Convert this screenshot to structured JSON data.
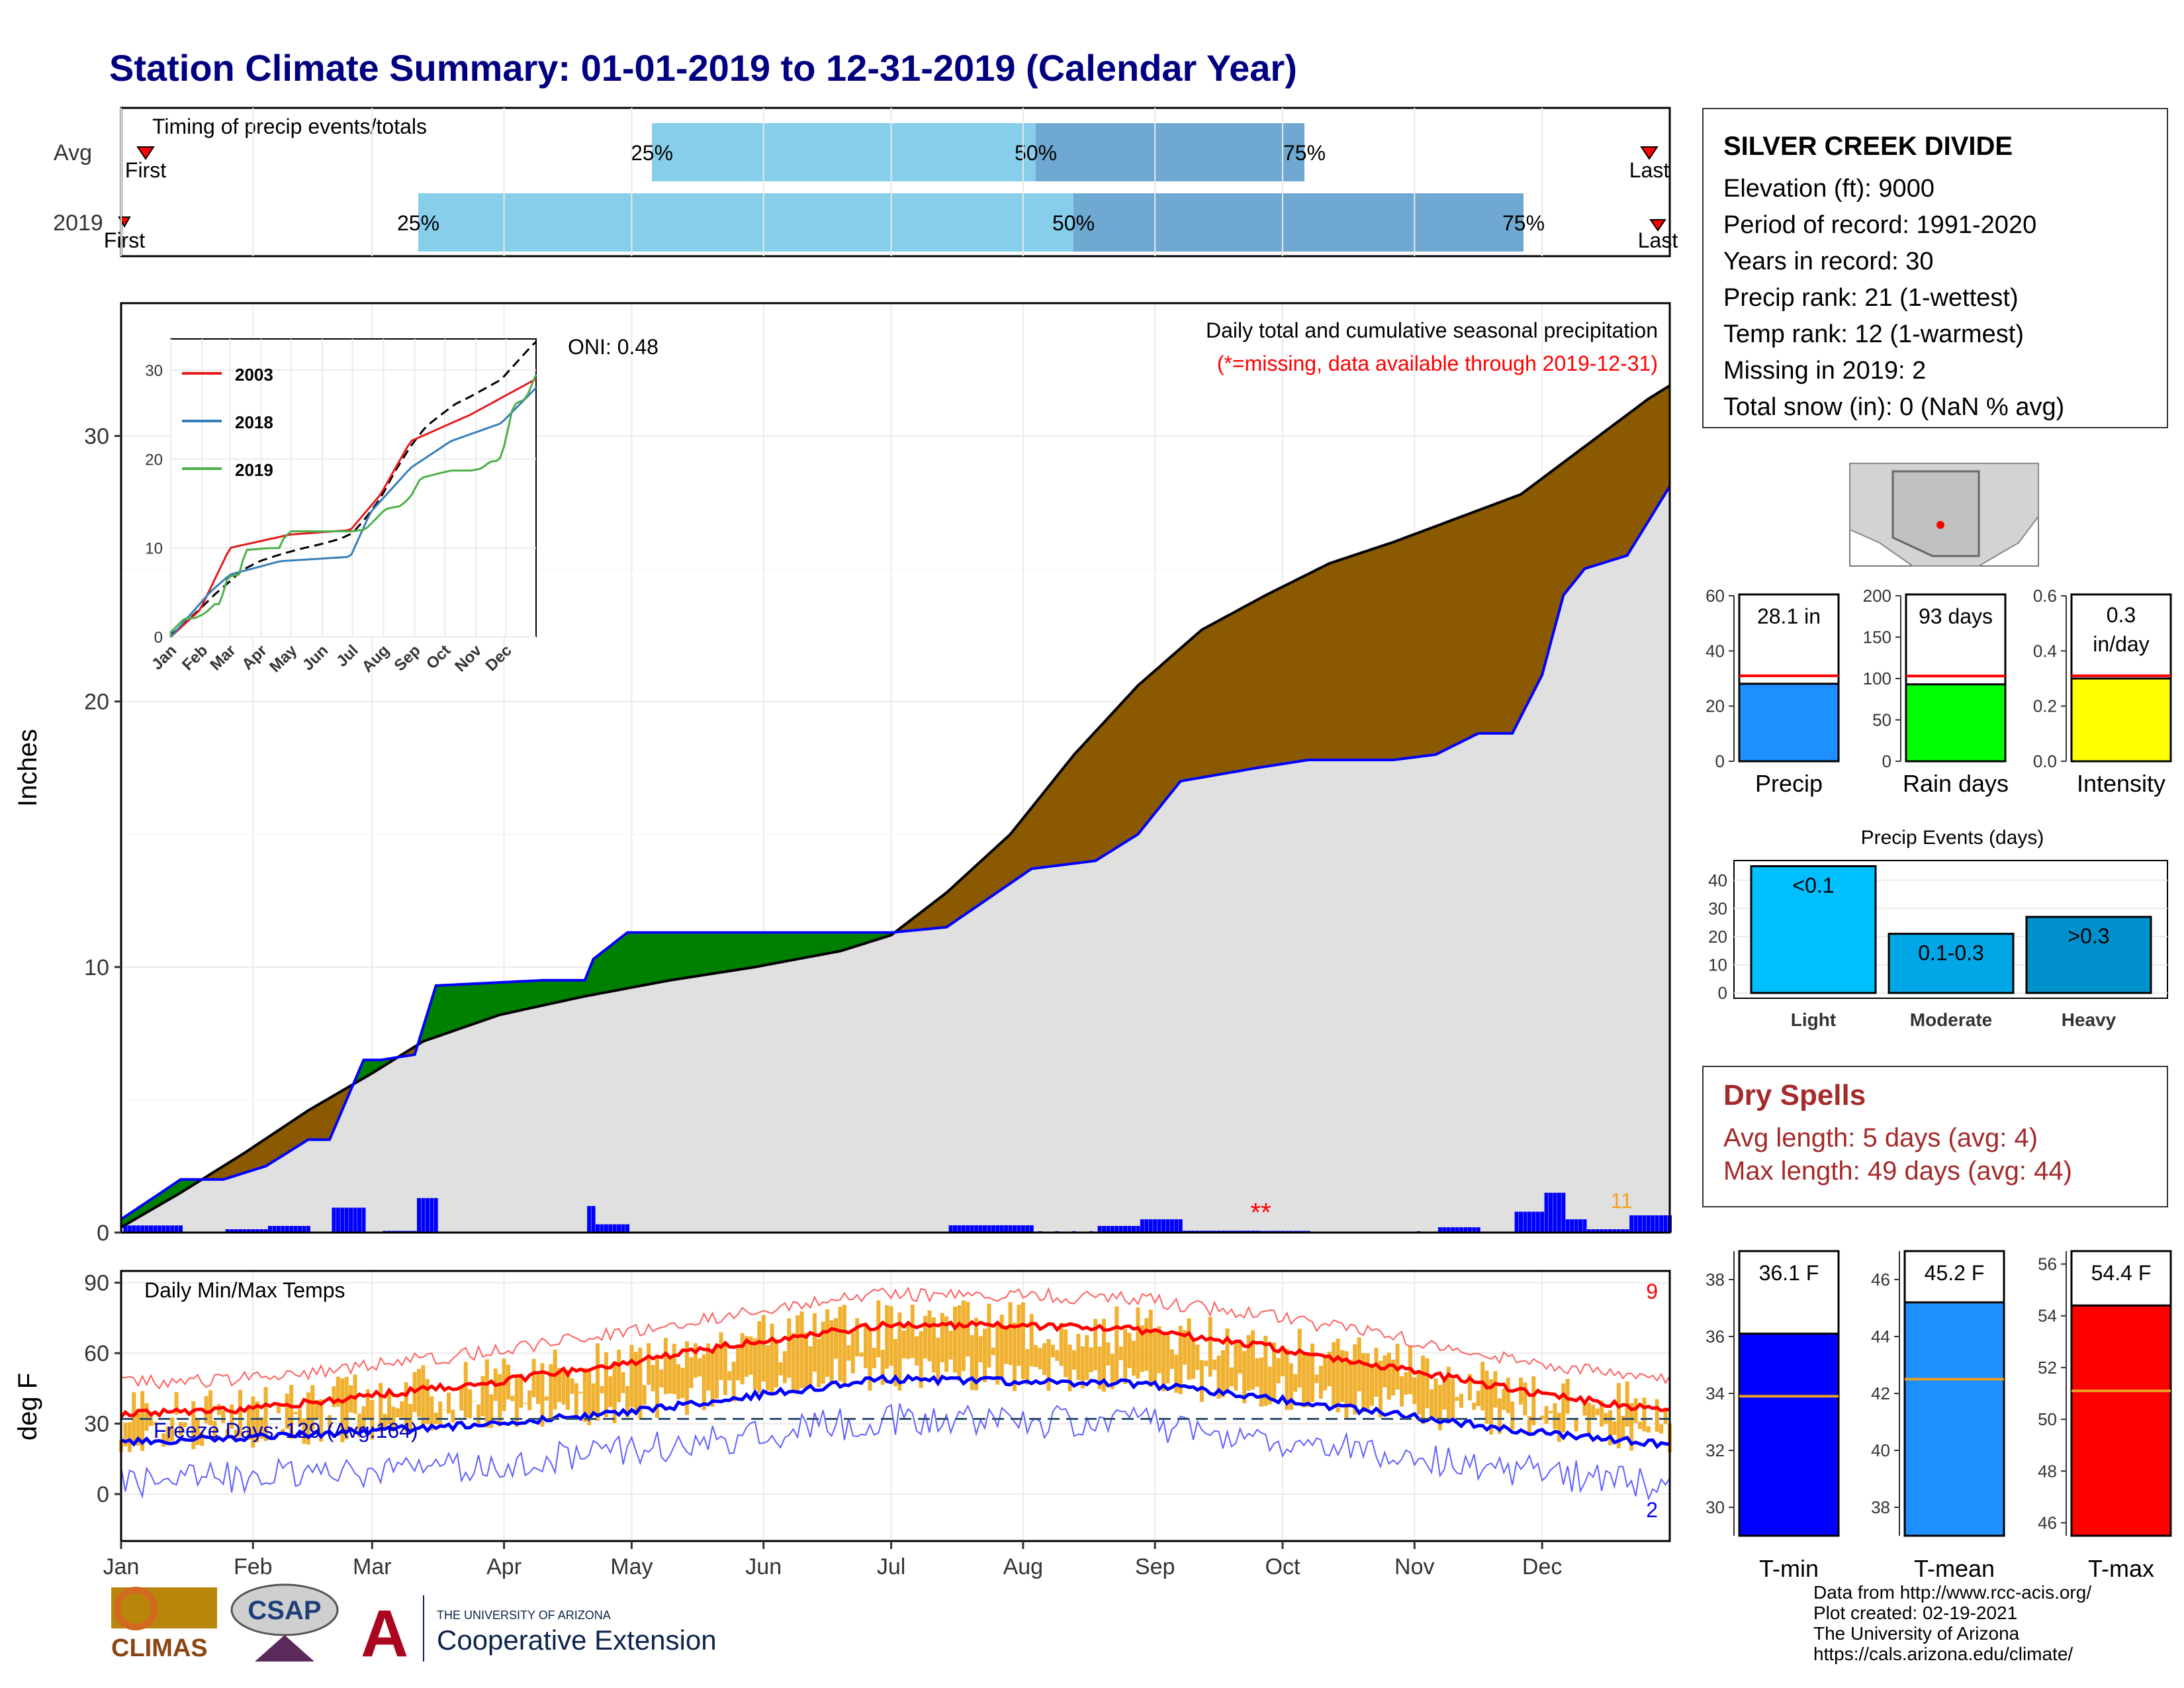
{
  "title": "Station Climate Summary: 01-01-2019 to 12-31-2019 (Calendar Year)",
  "colors": {
    "title": "#000080",
    "light_blue": "#87ceeb",
    "mid_blue": "#6fa8d0",
    "brown": "#8b5a00",
    "green": "#008000",
    "bar_blue": "#0000ff",
    "grey_fill": "#e0e0e0",
    "orange": "#f0b030",
    "red": "#ff0000",
    "dark_red": "#a52a2a"
  },
  "timing_panel": {
    "label": "Timing of precip events/totals",
    "rows": [
      {
        "name": "Avg",
        "first_label": "First",
        "last_label": "Last",
        "p25": "25%",
        "p50": "50%",
        "p75": "75%"
      },
      {
        "name": "2019",
        "first_label": "First",
        "last_label": "Last",
        "p25": "25%",
        "p50": "50%",
        "p75": "75%"
      }
    ]
  },
  "precip_panel": {
    "ylabel": "Inches",
    "yticks": [
      "0",
      "10",
      "20",
      "30"
    ],
    "title_line1": "Daily total and cumulative seasonal precipitation",
    "title_line2": "(*=missing, data available through 2019-12-31)",
    "oni": "ONI: 0.48",
    "missing_marker": "**",
    "corner_count": "11"
  },
  "inset": {
    "legend": [
      "2003",
      "2018",
      "2019"
    ],
    "legend_colors": [
      "#e41a1c",
      "#377eb8",
      "#4daf4a"
    ],
    "yticks": [
      "0",
      "10",
      "20",
      "30"
    ],
    "months": [
      "Jan",
      "Feb",
      "Mar",
      "Apr",
      "May",
      "Jun",
      "Jul",
      "Aug",
      "Sep",
      "Oct",
      "Nov",
      "Dec"
    ]
  },
  "temp_panel": {
    "ylabel": "deg F",
    "label": "Daily Min/Max Temps",
    "yticks": [
      "0",
      "30",
      "60",
      "90"
    ],
    "freeze": "Freeze Days: 129 (Avg:164)",
    "count_top": "9",
    "count_bottom": "2"
  },
  "months": [
    "Jan",
    "Feb",
    "Mar",
    "Apr",
    "May",
    "Jun",
    "Jul",
    "Aug",
    "Sep",
    "Oct",
    "Nov",
    "Dec"
  ],
  "station": {
    "name": "SILVER CREEK DIVIDE",
    "lines": [
      "Elevation (ft): 9000",
      "Period of record: 1991-2020",
      "Years in record: 30",
      "Precip rank: 21 (1-wettest)",
      "Temp rank: 12 (1-warmest)",
      "Missing in 2019: 2",
      "Total snow (in): 0 (NaN % avg)"
    ]
  },
  "summary_bars": [
    {
      "label": "Precip",
      "value_text": "28.1 in",
      "value": 28.1,
      "avg": 31,
      "color": "#1e90ff",
      "yticks": [
        "0",
        "20",
        "40",
        "60"
      ],
      "ymin": 0,
      "ymax": 60
    },
    {
      "label": "Rain days",
      "value_text": "93 days",
      "value": 93,
      "avg": 103,
      "color": "#00ff00",
      "yticks": [
        "0",
        "50",
        "100",
        "150",
        "200"
      ],
      "ymin": 0,
      "ymax": 200
    },
    {
      "label": "Intensity",
      "value_text1": "0.3",
      "value_text2": "in/day",
      "value": 0.3,
      "avg": 0.31,
      "color": "#ffff00",
      "yticks": [
        "0.0",
        "0.2",
        "0.4",
        "0.6"
      ],
      "ymin": 0,
      "ymax": 0.6
    }
  ],
  "events": {
    "title": "Precip Events (days)",
    "yticks": [
      "0",
      "10",
      "20",
      "30",
      "40"
    ],
    "bars": [
      {
        "category": "Light",
        "inside": "<0.1",
        "value": 45,
        "color": "#00bfff"
      },
      {
        "category": "Moderate",
        "inside": "0.1-0.3",
        "value": 21,
        "color": "#00a6e6"
      },
      {
        "category": "Heavy",
        "inside": ">0.3",
        "value": 27,
        "color": "#0090cc"
      }
    ]
  },
  "dry_spells": {
    "title": "Dry Spells",
    "avg": "Avg length: 5 days (avg: 4)",
    "max": "Max length: 49 days (avg: 44)"
  },
  "temp_bars": [
    {
      "label": "T-min",
      "value_text": "36.1 F",
      "value": 36.1,
      "avg": 33.9,
      "color": "#0000ff",
      "yticks": [
        "30",
        "32",
        "34",
        "36",
        "38"
      ],
      "ymin": 29,
      "ymax": 39
    },
    {
      "label": "T-mean",
      "value_text": "45.2 F",
      "value": 45.2,
      "avg": 42.5,
      "color": "#1e90ff",
      "yticks": [
        "38",
        "40",
        "42",
        "44",
        "46"
      ],
      "ymin": 37,
      "ymax": 47
    },
    {
      "label": "T-max",
      "value_text": "54.4 F",
      "value": 54.4,
      "avg": 51.1,
      "color": "#ff0000",
      "yticks": [
        "46",
        "48",
        "50",
        "52",
        "54",
        "56"
      ],
      "ymin": 45.5,
      "ymax": 56.5
    }
  ],
  "logos": {
    "climas": "CLIMAS",
    "csap": "CSAP",
    "ua_small": "THE UNIVERSITY OF ARIZONA",
    "ua_big": "Cooperative Extension"
  },
  "credits": [
    "Data from http://www.rcc-acis.org/",
    "Plot created: 02-19-2021",
    "The University of Arizona",
    "https://cals.arizona.edu/climate/"
  ],
  "chart_data": [
    {
      "type": "area",
      "title": "Daily total and cumulative seasonal precipitation",
      "ylabel": "Inches",
      "ylim": [
        0,
        35
      ],
      "series": [
        {
          "name": "",
          "x": [
            1,
            15,
            30,
            45,
            60,
            72,
            90,
            110,
            130,
            150,
            170,
            182,
            195,
            210,
            225,
            240,
            255,
            270,
            285,
            300,
            315,
            330,
            345,
            360,
            365
          ],
          "values": [
            0.2,
            1.5,
            3.0,
            4.6,
            6.0,
            7.2,
            8.2,
            8.9,
            9.5,
            10.0,
            10.6,
            11.2,
            12.8,
            15.0,
            18.0,
            20.6,
            22.7,
            24.0,
            25.2,
            26.0,
            26.9,
            27.8,
            29.6,
            31.4,
            31.9
          ]
        },
        {
          "name": "2019",
          "x": [
            1,
            15,
            25,
            35,
            45,
            50,
            58,
            62,
            70,
            75,
            100,
            110,
            112,
            120,
            182,
            195,
            205,
            215,
            230,
            240,
            250,
            268,
            280,
            300,
            310,
            320,
            328,
            335,
            340,
            345,
            355,
            365
          ],
          "values": [
            0.5,
            2.0,
            2.0,
            2.5,
            3.5,
            3.5,
            6.5,
            6.5,
            6.7,
            9.3,
            9.5,
            9.5,
            10.3,
            11.3,
            11.3,
            11.5,
            12.6,
            13.7,
            14.0,
            15.0,
            17.0,
            17.5,
            17.8,
            17.8,
            18.0,
            18.8,
            18.8,
            21.0,
            24.0,
            25.0,
            25.5,
            28.1
          ]
        }
      ]
    },
    {
      "type": "line",
      "title": "",
      "ylabel": "deg F",
      "ylim": [
        -20,
        95
      ],
      "series": [
        {
          "name": "",
          "x": [
            1,
            30,
            60,
            90,
            120,
            150,
            180,
            210,
            240,
            270,
            300,
            330,
            365
          ],
          "values": [
            34,
            36,
            42,
            48,
            56,
            65,
            72,
            72,
            70,
            63,
            54,
            44,
            35
          ]
        },
        {
          "name": "",
          "x": [
            1,
            30,
            60,
            90,
            120,
            150,
            180,
            210,
            240,
            270,
            300,
            330,
            365
          ],
          "values": [
            22,
            24,
            27,
            30,
            35,
            42,
            49,
            48,
            47,
            41,
            34,
            27,
            21
          ]
        }
      ]
    }
  ]
}
